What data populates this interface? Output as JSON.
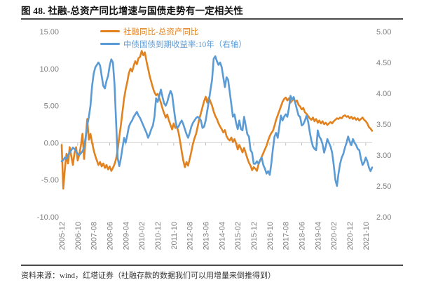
{
  "header": {
    "title": "图 48. 社融-总资产同比增速与国债走势有一定相关性"
  },
  "footer": {
    "source": "资料来源：wind，红塔证券（社融存款的数据我们可以用增量来倒推得到）"
  },
  "colors": {
    "orange": "#E2821E",
    "blue": "#5B9BD5",
    "grid": "#D9D9D9",
    "tick": "#BFBFBF",
    "axis_text": "#7F7F7F",
    "rule": "#4A4A4A"
  },
  "legend": [
    {
      "label": "社融同比-总资产同比",
      "color": "#E2821E"
    },
    {
      "label": "中债国债到期收益率:10年（右轴）",
      "color": "#5B9BD5"
    }
  ],
  "chart_data": {
    "type": "line",
    "title": "图 48. 社融-总资产同比增速与国债走势有一定相关性",
    "x_start": "2005-12",
    "x_end": "2022-02",
    "x_freq": "monthly",
    "x_tick_every_months": 10,
    "x_tick_labels": [
      "2005-12",
      "2006-10",
      "2007-08",
      "2008-06",
      "2009-04",
      "2010-02",
      "2010-12",
      "2011-10",
      "2012-08",
      "2013-06",
      "2014-04",
      "2015-02",
      "2015-12",
      "2016-10",
      "2017-08",
      "2018-06",
      "2019-04",
      "2020-02",
      "2020-12",
      "2021-10"
    ],
    "grid": "zero-line-only",
    "legend_position": "top-center",
    "left_axis": {
      "min": -10,
      "max": 15,
      "tick_values": [
        15,
        10,
        5,
        0,
        -5,
        -10
      ],
      "tick_labels": [
        "15.00",
        "10.00",
        "5.00",
        "0.00",
        "-5.00",
        "-10.00"
      ]
    },
    "right_axis": {
      "min": 2,
      "max": 5,
      "tick_values": [
        5,
        4.5,
        4,
        3.5,
        3,
        2.5,
        2
      ],
      "tick_labels": [
        "5.00",
        "4.50",
        "4.00",
        "3.50",
        "3.00",
        "2.50",
        "2.00"
      ]
    },
    "series": [
      {
        "name": "社融同比-总资产同比",
        "axis": "left",
        "color": "#E2821E",
        "values": [
          -0.3,
          -6.2,
          -3.5,
          -1.5,
          -2.8,
          -0.6,
          -1.8,
          -3.0,
          -1.4,
          -0.6,
          -2.4,
          -1.6,
          -0.4,
          1.2,
          -2.2,
          0.6,
          3.2,
          0.4,
          1.2,
          0.0,
          -1.0,
          -1.8,
          -2.4,
          -3.0,
          -2.6,
          -3.2,
          -2.8,
          -3.4,
          -3.0,
          -3.6,
          -3.2,
          -3.8,
          -3.4,
          -2.9,
          -2.2,
          -1.0,
          0.8,
          2.4,
          4.2,
          6.0,
          7.2,
          8.2,
          9.4,
          10.0,
          9.6,
          10.4,
          11.0,
          10.6,
          11.4,
          11.6,
          12.4,
          11.8,
          12.2,
          11.0,
          10.0,
          9.0,
          8.2,
          7.4,
          6.8,
          6.4,
          6.6,
          6.0,
          5.4,
          4.6,
          4.0,
          3.4,
          3.8,
          3.0,
          2.4,
          1.8,
          2.6,
          2.0,
          2.2,
          1.4,
          0.2,
          -1.2,
          -2.4,
          -3.3,
          -2.6,
          -3.1,
          -2.2,
          -1.2,
          -0.2,
          0.6,
          1.2,
          2.2,
          3.2,
          4.0,
          4.8,
          5.6,
          6.2,
          5.4,
          6.1,
          5.5,
          5.0,
          4.2,
          3.6,
          3.2,
          2.6,
          2.2,
          1.8,
          1.4,
          1.7,
          0.9,
          0.5,
          0.3,
          0.7,
          0.1,
          0.5,
          -0.1,
          -0.9,
          -0.3,
          -0.8,
          -1.3,
          -0.7,
          -1.4,
          -2.1,
          -2.7,
          -3.1,
          -3.7,
          -3.3,
          -3.5,
          -3.8,
          -2.9,
          -2.4,
          -1.9,
          -1.4,
          -0.9,
          -0.4,
          0.3,
          0.9,
          1.3,
          1.6,
          2.3,
          3.1,
          3.7,
          4.3,
          4.9,
          5.5,
          5.9,
          6.1,
          5.7,
          6.0,
          5.4,
          5.7,
          5.9,
          5.5,
          5.7,
          5.1,
          4.9,
          4.5,
          4.7,
          4.1,
          3.9,
          3.6,
          3.3,
          3.1,
          3.4,
          2.9,
          3.2,
          2.7,
          3.0,
          2.6,
          2.9,
          2.5,
          2.7,
          2.4,
          2.6,
          2.8,
          2.6,
          2.9,
          3.1,
          3.3,
          3.2,
          3.4,
          3.3,
          3.6,
          3.7,
          3.5,
          3.6,
          3.3,
          3.5,
          3.2,
          3.4,
          3.1,
          3.3,
          3.0,
          3.2,
          3.4,
          3.1,
          2.9,
          2.6,
          2.1,
          1.9,
          1.6
        ]
      },
      {
        "name": "中债国债到期收益率:10年（右轴）",
        "axis": "right",
        "color": "#5B9BD5",
        "values": [
          2.9,
          2.92,
          2.96,
          2.94,
          3.0,
          3.04,
          3.08,
          3.12,
          3.1,
          3.06,
          3.02,
          3.0,
          3.03,
          3.06,
          3.12,
          3.3,
          3.48,
          3.62,
          3.8,
          4.12,
          4.32,
          4.42,
          4.46,
          4.5,
          4.45,
          4.28,
          4.12,
          4.08,
          4.2,
          4.28,
          4.45,
          4.55,
          4.5,
          4.15,
          3.55,
          2.95,
          2.82,
          2.95,
          3.12,
          3.28,
          3.2,
          3.32,
          3.46,
          3.52,
          3.56,
          3.62,
          3.66,
          3.7,
          3.64,
          3.6,
          3.54,
          3.48,
          3.42,
          3.36,
          3.28,
          3.34,
          3.42,
          3.48,
          3.62,
          3.92,
          3.86,
          3.96,
          4.06,
          3.94,
          3.84,
          3.8,
          3.86,
          3.96,
          4.04,
          3.98,
          3.78,
          3.58,
          3.44,
          3.46,
          3.52,
          3.56,
          3.5,
          3.42,
          3.34,
          3.28,
          3.36,
          3.46,
          3.52,
          3.56,
          3.6,
          3.62,
          3.6,
          3.56,
          3.44,
          3.46,
          3.56,
          3.72,
          3.88,
          4.06,
          4.22,
          4.56,
          4.6,
          4.52,
          4.46,
          4.5,
          4.42,
          4.26,
          4.1,
          4.26,
          4.22,
          4.02,
          3.82,
          3.62,
          3.66,
          3.52,
          3.42,
          3.56,
          3.42,
          3.4,
          3.62,
          3.48,
          3.34,
          3.3,
          3.08,
          3.04,
          2.86,
          2.86,
          2.9,
          2.86,
          2.92,
          2.96,
          2.84,
          2.78,
          2.7,
          2.74,
          2.68,
          2.86,
          3.1,
          3.3,
          3.36,
          3.28,
          3.46,
          3.64,
          3.56,
          3.62,
          3.66,
          3.62,
          3.76,
          3.96,
          3.9,
          3.94,
          3.84,
          3.74,
          3.64,
          3.62,
          3.48,
          3.5,
          3.56,
          3.64,
          3.54,
          3.38,
          3.24,
          3.14,
          3.1,
          3.08,
          3.4,
          3.3,
          3.26,
          3.18,
          3.04,
          3.14,
          3.26,
          3.2,
          3.14,
          3.04,
          2.84,
          2.6,
          2.5,
          2.7,
          2.86,
          2.96,
          3.02,
          3.12,
          3.2,
          3.3,
          3.22,
          3.16,
          3.26,
          3.2,
          3.16,
          3.1,
          3.08,
          2.94,
          2.84,
          2.88,
          2.96,
          2.9,
          2.8,
          2.74,
          2.8
        ]
      }
    ]
  }
}
